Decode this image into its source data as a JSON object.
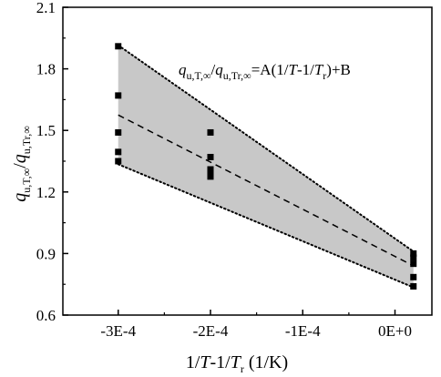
{
  "chart_data": {
    "type": "scatter",
    "title": "",
    "xlabel": "1/T-1/Tr (1/K)",
    "xlabel_parts": {
      "main": "1/",
      "italic_T": "T",
      "mid": "-1/",
      "italic_T2": "T",
      "sub": "r",
      "unit": " (1/K)"
    },
    "ylabel": "qu,T,∞/qu,Tr,∞",
    "ylabel_parts": {
      "q1": "q",
      "sub1": "u,T,∞",
      "slash": "/",
      "q2": "q",
      "sub2": "u,Tr,∞"
    },
    "equation": "qu,T,∞/qu,Tr,∞=A(1/T-1/Tr)+B",
    "equation_parts": {
      "q1": "q",
      "sub1": "u,T,∞",
      "slash": "/",
      "q2": "q",
      "sub2": "u,Tr,∞",
      "eqA": "=A(1/",
      "T1": "T",
      "minus": "-1/",
      "T2": "T",
      "subr": "r",
      "tail": ")+B"
    },
    "xlim": [
      -0.00036,
      4e-05
    ],
    "ylim": [
      0.6,
      2.1
    ],
    "x_ticks": [
      {
        "value": -0.0003,
        "label": "-3E-4"
      },
      {
        "value": -0.0002,
        "label": "-2E-4"
      },
      {
        "value": -0.0001,
        "label": "-1E-4"
      },
      {
        "value": 0.0,
        "label": "0E+0"
      }
    ],
    "y_ticks": [
      {
        "value": 0.6,
        "label": "0.6"
      },
      {
        "value": 0.9,
        "label": "0.9"
      },
      {
        "value": 1.2,
        "label": "1.2"
      },
      {
        "value": 1.5,
        "label": "1.5"
      },
      {
        "value": 1.8,
        "label": "1.8"
      },
      {
        "value": 2.1,
        "label": "2.1"
      }
    ],
    "series": [
      {
        "points": [
          {
            "x": -0.0003,
            "y": 1.91
          },
          {
            "x": -0.0003,
            "y": 1.67
          },
          {
            "x": -0.0003,
            "y": 1.49
          },
          {
            "x": -0.0003,
            "y": 1.395
          },
          {
            "x": -0.0003,
            "y": 1.35
          },
          {
            "x": -0.0002,
            "y": 1.49
          },
          {
            "x": -0.0002,
            "y": 1.37
          },
          {
            "x": -0.0002,
            "y": 1.31
          },
          {
            "x": -0.0002,
            "y": 1.29
          },
          {
            "x": -0.0002,
            "y": 1.275
          },
          {
            "x": 2e-05,
            "y": 0.9
          },
          {
            "x": 2e-05,
            "y": 0.88
          },
          {
            "x": 2e-05,
            "y": 0.85
          },
          {
            "x": 2e-05,
            "y": 0.785
          },
          {
            "x": 2e-05,
            "y": 0.74
          }
        ]
      }
    ],
    "fit_line": {
      "x": [
        -0.0003,
        2e-05
      ],
      "y": [
        1.575,
        0.84
      ]
    },
    "band_upper": {
      "x": [
        -0.0003,
        2e-05
      ],
      "y": [
        1.915,
        0.91
      ]
    },
    "band_lower": {
      "x": [
        -0.0003,
        2e-05
      ],
      "y": [
        1.335,
        0.735
      ]
    },
    "colors": {
      "band_fill": "#c8c8c8",
      "markers": "#000000",
      "lines": "#000000"
    },
    "grid": false,
    "legend": "none"
  }
}
